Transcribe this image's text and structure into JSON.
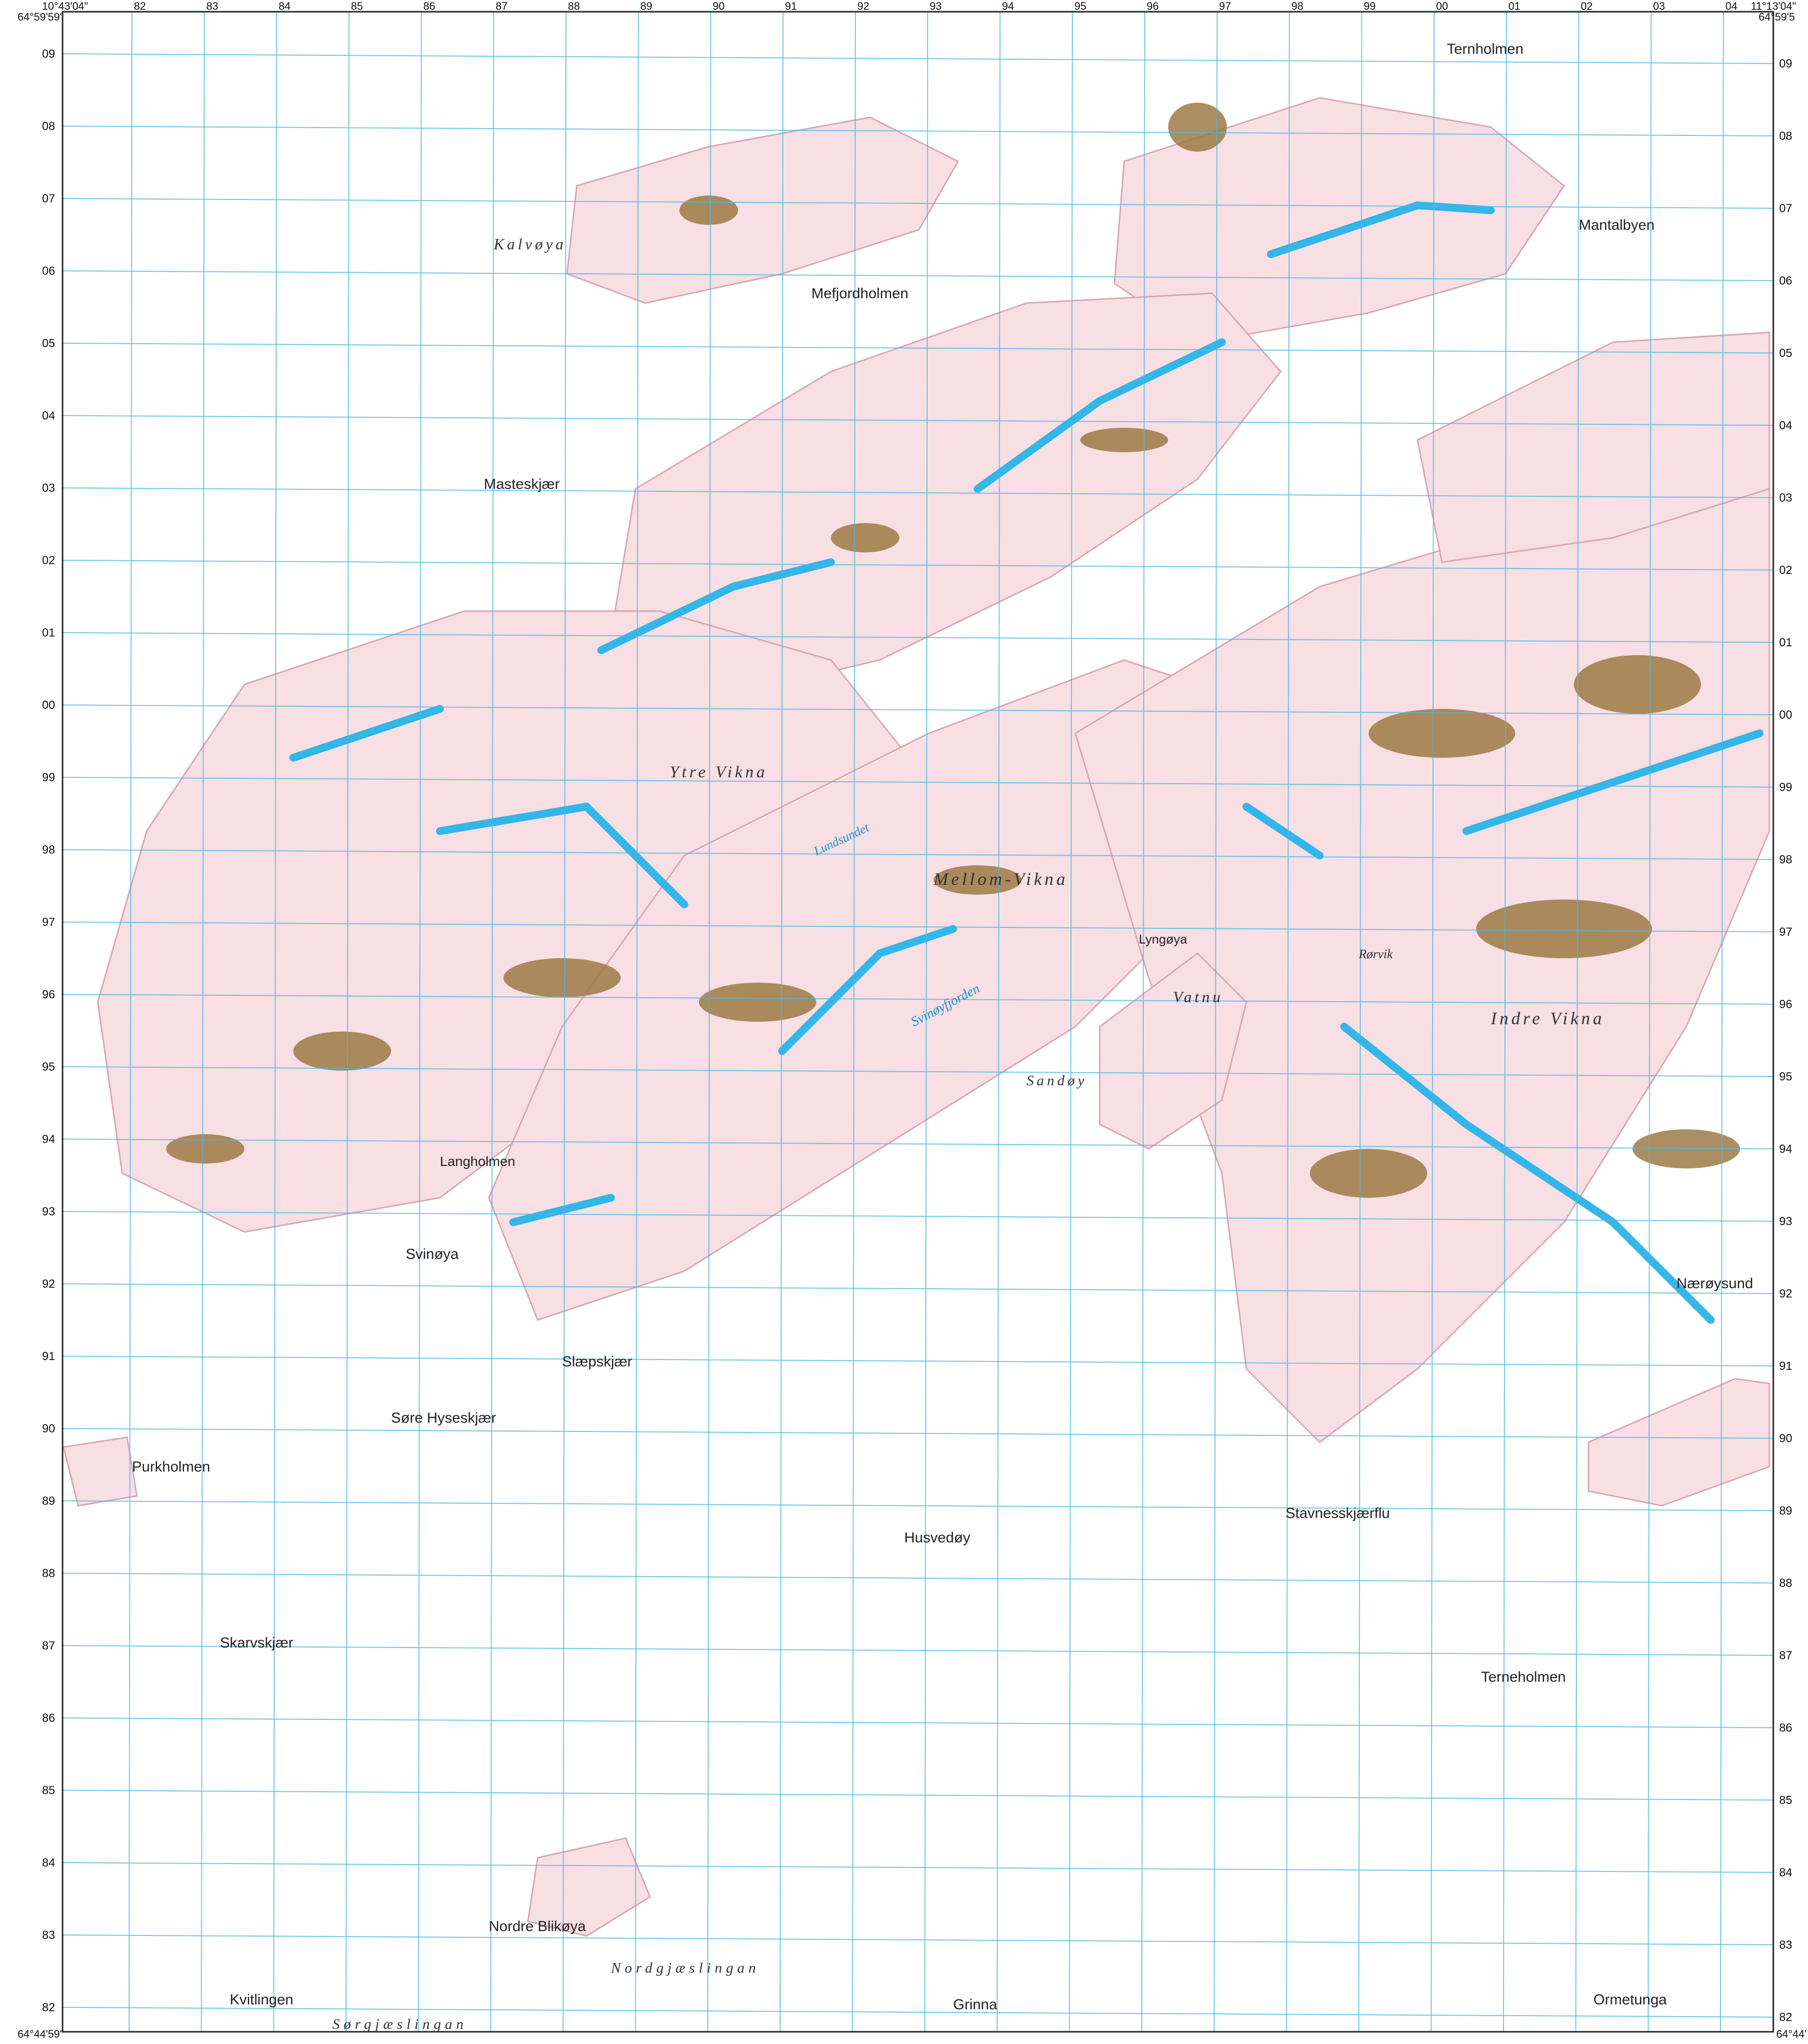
{
  "map": {
    "corners": {
      "top_left_lon": "10°43'04\"",
      "top_left_lat": "64°59'59\"",
      "top_right_lon": "11°13'04\"",
      "top_right_lat": "64°59'5",
      "bottom_left_lat": "64°44'59\"",
      "bottom_right_lat": "64°44'"
    },
    "grid_x_labels": [
      "82",
      "83",
      "84",
      "85",
      "86",
      "87",
      "88",
      "89",
      "90",
      "91",
      "92",
      "93",
      "94",
      "95",
      "96",
      "97",
      "98",
      "99",
      "00",
      "01",
      "02",
      "03",
      "04"
    ],
    "grid_y_labels": [
      "09",
      "08",
      "07",
      "06",
      "05",
      "04",
      "03",
      "02",
      "01",
      "00",
      "99",
      "98",
      "97",
      "96",
      "95",
      "94",
      "93",
      "92",
      "91",
      "90",
      "89",
      "88",
      "87",
      "86",
      "85",
      "84",
      "83",
      "82"
    ],
    "colors": {
      "land": "#f7dfe4",
      "land_outline": "#d9a6b3",
      "rock": "#9c7a45",
      "lake": "#33b6e8",
      "coast": "#1f8fc9",
      "grid": "#49b8e6",
      "marsh": "#7fc28a"
    },
    "places": {
      "ternholmen": "Ternholmen",
      "mantalbyen": "Mantalbyen",
      "mefjordholmen": "Mefjordholmen",
      "kalvoya": "Kalvøya",
      "mastesk": "Masteskjær",
      "moen_vikna": "Mellom-Vikna",
      "lyngoya": "Lyngøya",
      "langholmen": "Langholmen",
      "svinoya": "Svinøya",
      "slapskjar": "Slæpskjær",
      "sore_hyseskjar": "Søre Hyseskjær",
      "purkholmen": "Purkholmen",
      "skarvskjar": "Skarvskjær",
      "husvedoy": "Husvedøy",
      "stavnesskjarflu": "Stavnesskjærflu",
      "naeroysund": "Nærøysund",
      "terneholmen": "Terneholmen",
      "nordre_blikoya": "Nordre Blikøya",
      "kvitlingen": "Kvitlingen",
      "grinna": "Grinna",
      "ormetunga": "Ormetunga",
      "nordgjaslingan": "Nordgjæslingan",
      "sorgjaslingan": "Sørgjæslingan",
      "ytre_vikna": "Ytre Vikna",
      "indre_vikna": "Indre Vikna",
      "rorvik": "Rørvik",
      "vatnu": "Vatnu",
      "svinoyfjorden": "Svinøyfjorden",
      "sandoy": "Sandøy",
      "lundsundet": "Lundsundet"
    }
  }
}
